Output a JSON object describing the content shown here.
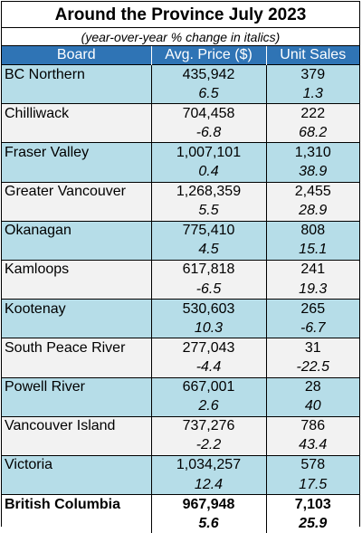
{
  "title": "Around the Province July 2023",
  "subtitle": "(year-over-year % change in italics)",
  "headers": {
    "board": "Board",
    "price": "Avg. Price ($)",
    "sales": "Unit Sales"
  },
  "rows": [
    {
      "board": "BC Northern",
      "price": "435,942",
      "sales": "379",
      "price_chg": "6.5",
      "sales_chg": "1.3"
    },
    {
      "board": "Chilliwack",
      "price": "704,458",
      "sales": "222",
      "price_chg": "-6.8",
      "sales_chg": "68.2"
    },
    {
      "board": "Fraser Valley",
      "price": "1,007,101",
      "sales": "1,310",
      "price_chg": "0.4",
      "sales_chg": "38.9"
    },
    {
      "board": "Greater Vancouver",
      "price": "1,268,359",
      "sales": "2,455",
      "price_chg": "5.5",
      "sales_chg": "28.9"
    },
    {
      "board": "Okanagan",
      "price": "775,410",
      "sales": "808",
      "price_chg": "4.5",
      "sales_chg": "15.1"
    },
    {
      "board": "Kamloops",
      "price": "617,818",
      "sales": "241",
      "price_chg": "-6.5",
      "sales_chg": "19.3"
    },
    {
      "board": "Kootenay",
      "price": "530,603",
      "sales": "265",
      "price_chg": "10.3",
      "sales_chg": "-6.7"
    },
    {
      "board": "South Peace River",
      "price": "277,043",
      "sales": "31",
      "price_chg": "-4.4",
      "sales_chg": "-22.5"
    },
    {
      "board": "Powell River",
      "price": "667,001",
      "sales": "28",
      "price_chg": "2.6",
      "sales_chg": "40"
    },
    {
      "board": "Vancouver Island",
      "price": "737,276",
      "sales": "786",
      "price_chg": "-2.2",
      "sales_chg": "43.4"
    },
    {
      "board": "Victoria",
      "price": "1,034,257",
      "sales": "578",
      "price_chg": "12.4",
      "sales_chg": "17.5"
    }
  ],
  "total": {
    "board": "British Columbia",
    "price": "967,948",
    "sales": "7,103",
    "price_chg": "5.6",
    "sales_chg": "25.9"
  },
  "colors": {
    "header": "#2f74b5",
    "band_blue": "#b6dde8",
    "band_gray": "#f2f2f2"
  }
}
